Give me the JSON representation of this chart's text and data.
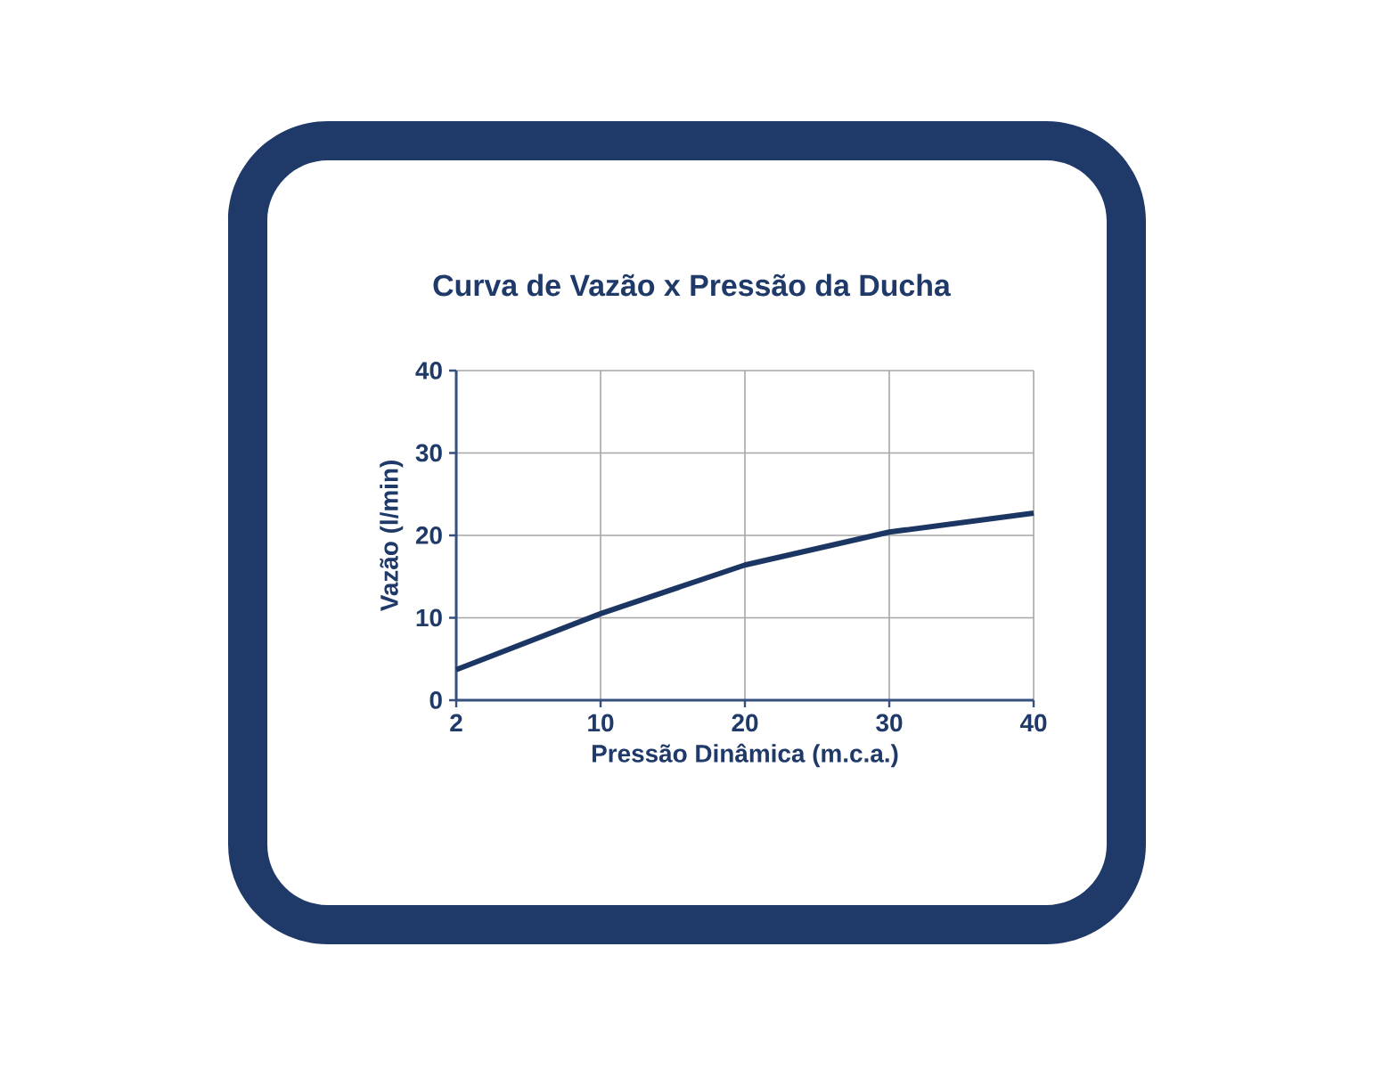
{
  "chart_data": {
    "type": "line",
    "title": "Curva de Vazão x Pressão da Ducha",
    "xlabel": "Pressão Dinâmica (m.c.a.)",
    "ylabel": "Vazão (l/min)",
    "categories": [
      "2",
      "10",
      "20",
      "30",
      "40"
    ],
    "series": [
      {
        "color": "#1c3664",
        "values": [
          3.7,
          10.5,
          16.4,
          20.4,
          22.7
        ]
      }
    ],
    "ylim": [
      0,
      40
    ],
    "yticks": [
      0,
      10,
      20,
      30,
      40
    ],
    "grid": true,
    "marker": "none",
    "line_style": "solid"
  }
}
